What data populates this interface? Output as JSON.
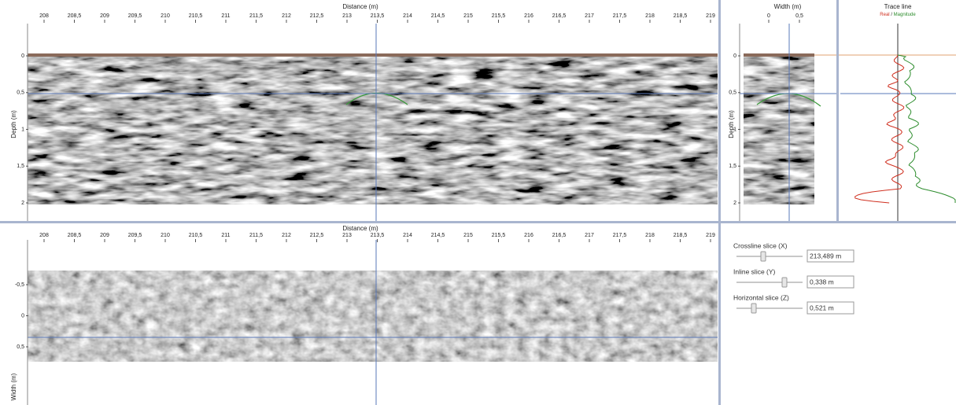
{
  "main_view": {
    "x_axis_title": "Distance (m)",
    "x_ticks": [
      "208",
      "208,5",
      "209",
      "209,5",
      "210",
      "210,5",
      "211",
      "211,5",
      "212",
      "212,5",
      "213",
      "213,5",
      "214",
      "214,5",
      "215",
      "215,5",
      "216",
      "216,5",
      "217",
      "217,5",
      "218",
      "218,5",
      "219"
    ],
    "y_axis_title": "Depth (m)",
    "y_ticks": [
      "0",
      "0,5",
      "1",
      "1,5",
      "2"
    ]
  },
  "width_view": {
    "x_axis_title": "Width (m)",
    "x_ticks": [
      "0",
      "0,5"
    ],
    "y_ticks": [
      "0",
      "0,5",
      "1",
      "1,5",
      "2"
    ]
  },
  "trace_view": {
    "title": "Trace line",
    "legend_real": "Real",
    "legend_separator": "/",
    "legend_magnitude": "Magnitude"
  },
  "slice_view": {
    "x_axis_title": "Distance (m)",
    "x_ticks": [
      "208",
      "208,5",
      "209",
      "209,5",
      "210",
      "210,5",
      "211",
      "211,5",
      "212",
      "212,5",
      "213",
      "213,5",
      "214",
      "214,5",
      "215",
      "215,5",
      "216",
      "216,5",
      "217",
      "217,5",
      "218",
      "218,5",
      "219"
    ],
    "y_axis_title": "Width (m)",
    "y_ticks": [
      "-0,5",
      "0",
      "0,5"
    ]
  },
  "controls": [
    {
      "label": "Crossline slice (X)",
      "value": "213,489 m"
    },
    {
      "label": "Inline slice (Y)",
      "value": "0,338 m"
    },
    {
      "label": "Horizontal slice (Z)",
      "value": "0,521 m"
    }
  ]
}
